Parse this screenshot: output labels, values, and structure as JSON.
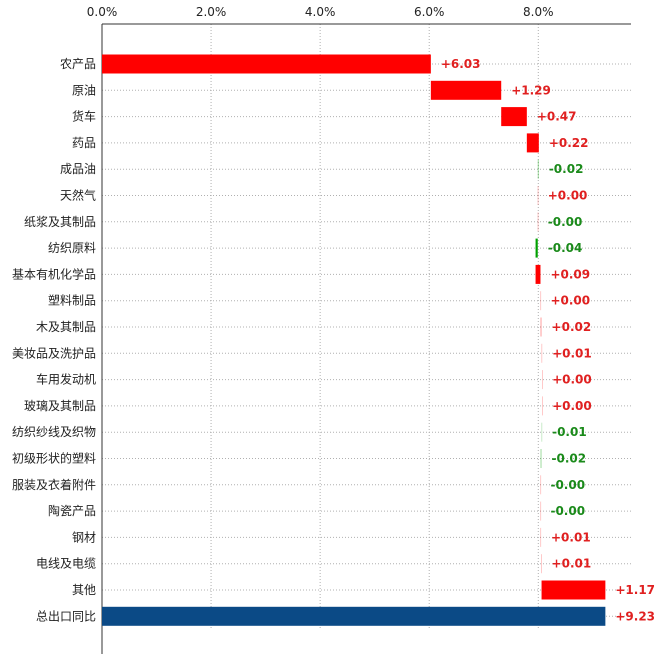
{
  "colors": {
    "positive": "#ff0000",
    "negative": "#00a000",
    "total": "#0b4a86",
    "positive_label": "#e02020",
    "negative_label": "#1a8a1a",
    "grid": "#b0b0b0",
    "axis": "#333333"
  },
  "chart_data": {
    "type": "bar",
    "subtype": "waterfall-horizontal",
    "xlim": [
      0,
      9.7
    ],
    "x_ticks": [
      0,
      2,
      4,
      6,
      8
    ],
    "x_tick_labels": [
      "0.0%",
      "2.0%",
      "4.0%",
      "6.0%",
      "8.0%"
    ],
    "x_axis_position": "top",
    "grid": true,
    "categories": [
      "农产品",
      "原油",
      "货车",
      "药品",
      "成品油",
      "天然气",
      "纸浆及其制品",
      "纺织原料",
      "基本有机化学品",
      "塑料制品",
      "木及其制品",
      "美妆品及洗护品",
      "车用发动机",
      "玻璃及其制品",
      "纺织纱线及织物",
      "初级形状的塑料",
      "服装及衣着附件",
      "陶瓷产品",
      "钢材",
      "电线及电缆",
      "其他",
      "总出口同比"
    ],
    "values": [
      6.03,
      1.29,
      0.47,
      0.22,
      -0.02,
      0.0,
      -0.0,
      -0.04,
      0.09,
      0.0,
      0.02,
      0.01,
      0.0,
      0.0,
      -0.01,
      -0.02,
      -0.0,
      -0.0,
      0.01,
      0.01,
      1.17,
      9.23
    ],
    "value_labels": [
      "+6.03",
      "+1.29",
      "+0.47",
      "+0.22",
      "-0.02",
      "+0.00",
      "-0.00",
      "-0.04",
      "+0.09",
      "+0.00",
      "+0.02",
      "+0.01",
      "+0.00",
      "+0.00",
      "-0.01",
      "-0.02",
      "-0.00",
      "-0.00",
      "+0.01",
      "+0.01",
      "+1.17",
      "+9.23"
    ],
    "total_index": 21
  }
}
